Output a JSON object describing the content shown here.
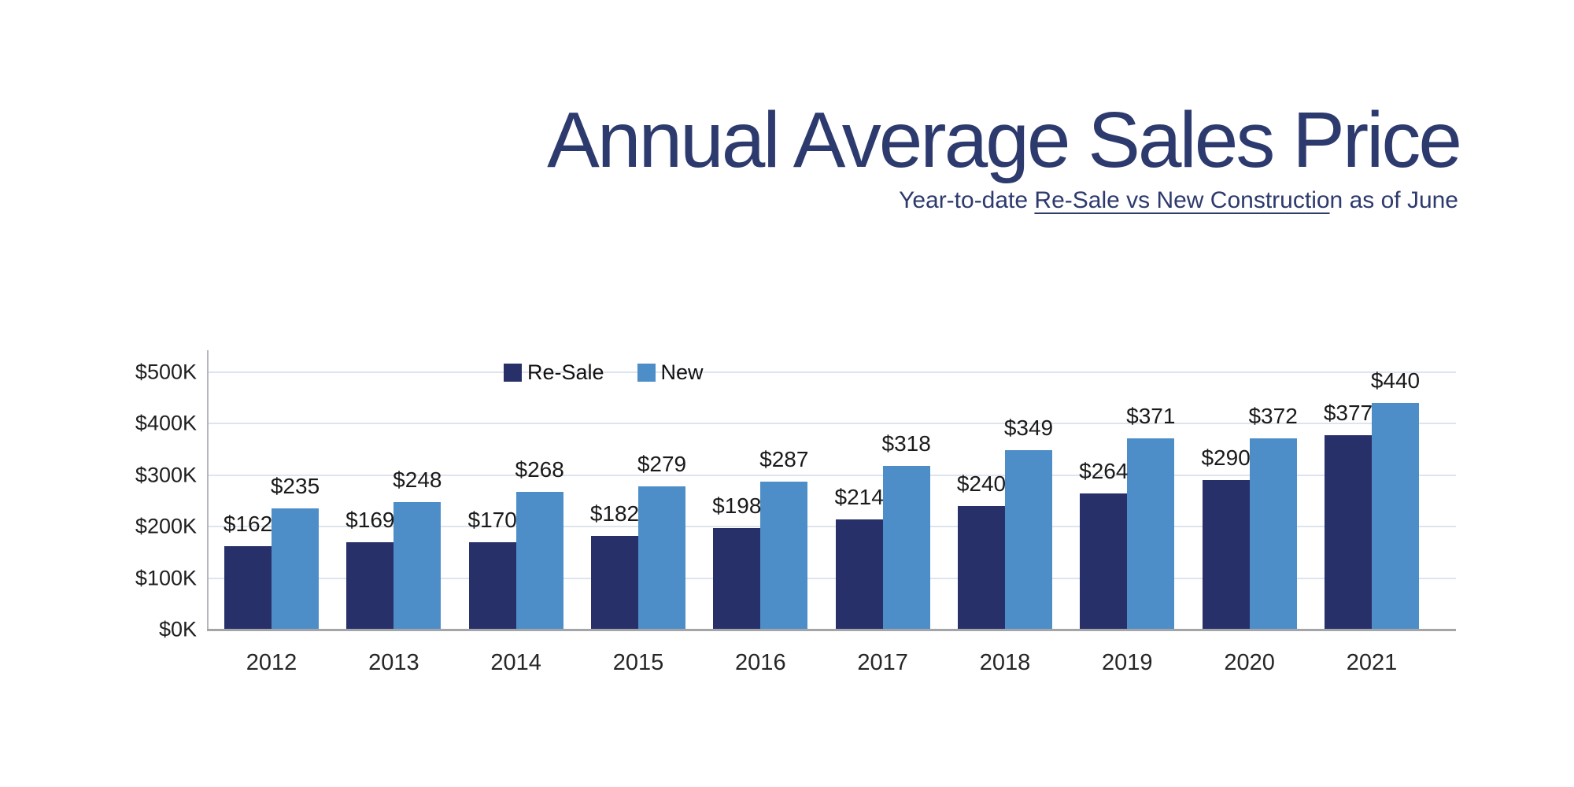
{
  "header": {
    "title": "Annual Average Sales Price",
    "subtitle_prefix": "Year-to-date ",
    "subtitle_underline": "Re-Sale vs New Constructio",
    "subtitle_suffix": "n as of June"
  },
  "colors": {
    "title_navy": "#2d3a6d",
    "resale_bar": "#28306a",
    "new_bar": "#4d8ec9",
    "gridline": "#dde4ee",
    "axis_line": "#b3b8bf",
    "baseline": "#a3a5a8",
    "label_text": "#1a1a1a"
  },
  "chart_data": {
    "type": "bar",
    "title": "Annual Average Sales Price",
    "subtitle": "Year-to-date Re-Sale vs New Construction as of June",
    "categories": [
      "2012",
      "2013",
      "2014",
      "2015",
      "2016",
      "2017",
      "2018",
      "2019",
      "2020",
      "2021"
    ],
    "series": [
      {
        "name": "Re-Sale",
        "color": "#28306a",
        "values": [
          162,
          169,
          170,
          182,
          198,
          214,
          240,
          264,
          290,
          377
        ],
        "labels": [
          "$162",
          "$169",
          "$170",
          "$182",
          "$198",
          "$214",
          "$240",
          "$264",
          "$290",
          "$377"
        ]
      },
      {
        "name": "New",
        "color": "#4d8ec9",
        "values": [
          235,
          248,
          268,
          279,
          287,
          318,
          349,
          371,
          372,
          440
        ],
        "labels": [
          "$235",
          "$248",
          "$268",
          "$279",
          "$287",
          "$318",
          "$349",
          "$371",
          "$372",
          "$440"
        ]
      }
    ],
    "value_prefix": "$",
    "unit": "thousand USD",
    "xlabel": "",
    "ylabel": "",
    "ylim": [
      0,
      500
    ],
    "y_ticks": [
      "$0K",
      "$100K",
      "$200K",
      "$300K",
      "$400K",
      "$500K"
    ],
    "y_tick_values": [
      0,
      100,
      200,
      300,
      400,
      500
    ],
    "grid": true,
    "legend_position": "inside-top-left"
  }
}
